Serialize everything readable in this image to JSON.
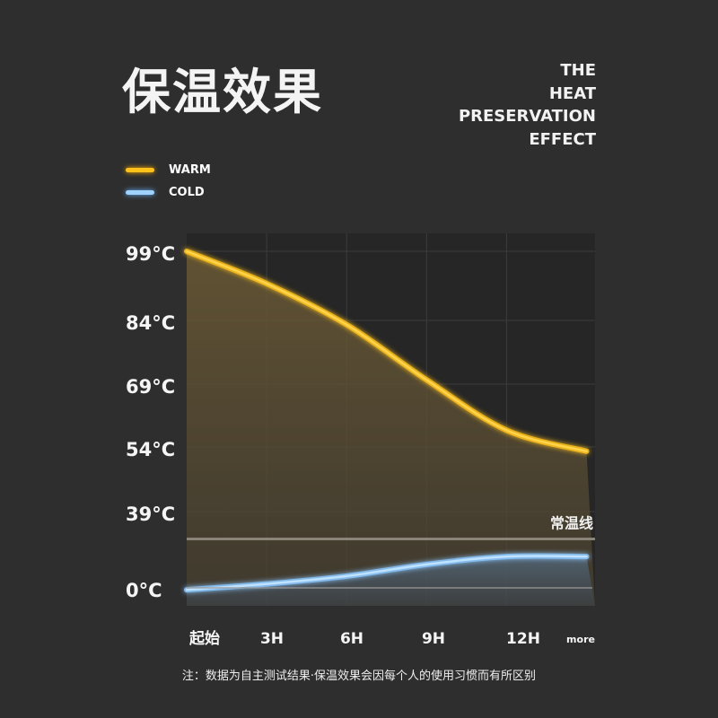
{
  "title": "保温效果",
  "subtitle_lines": [
    "THE",
    "HEAT",
    "PRESERVATION",
    "EFFECT"
  ],
  "note": "注：数据为自主测试结果·保温效果会因每个人的使用习惯而有所区别",
  "chart_data": {
    "type": "area",
    "x": [
      0,
      3,
      6,
      9,
      12,
      15
    ],
    "categories": [
      "起始",
      "3H",
      "6H",
      "9H",
      "12H",
      "more"
    ],
    "y_ticks": [
      99,
      84,
      69,
      54,
      39,
      0
    ],
    "y_tick_labels": [
      "99°C",
      "84°C",
      "69°C",
      "54°C",
      "39°C",
      "0°C"
    ],
    "ylim": [
      0,
      99
    ],
    "grid": true,
    "legend_position": "top-left",
    "series": [
      {
        "name": "WARM",
        "color": "#ffc21a",
        "values": [
          99,
          92,
          83,
          70,
          58,
          53
        ]
      },
      {
        "name": "COLD",
        "color": "#8cc8ff",
        "values": [
          -1,
          2,
          6,
          12,
          16,
          16
        ]
      }
    ],
    "reference_line": {
      "label": "常温线",
      "value": 25
    }
  }
}
